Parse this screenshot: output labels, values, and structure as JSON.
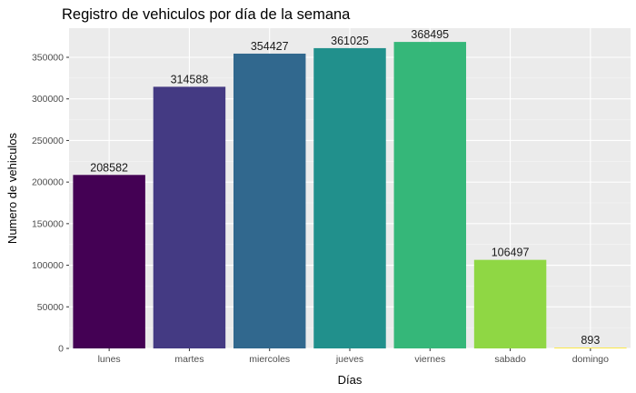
{
  "chart_data": {
    "type": "bar",
    "title": "Registro de vehiculos por día de la semana",
    "xlabel": "Días",
    "ylabel": "Numero de vehiculos",
    "categories": [
      "lunes",
      "martes",
      "miercoles",
      "jueves",
      "viernes",
      "sabado",
      "domingo"
    ],
    "values": [
      208582,
      314588,
      354427,
      361025,
      368495,
      106497,
      893
    ],
    "value_labels": [
      "208582",
      "314588",
      "354427",
      "361025",
      "368495",
      "106497",
      "893"
    ],
    "colors": [
      "#440154",
      "#443A83",
      "#31688E",
      "#21908C",
      "#35B779",
      "#8FD744",
      "#FDE725"
    ],
    "ylim": [
      0,
      385000
    ],
    "yticks": [
      0,
      50000,
      100000,
      150000,
      200000,
      250000,
      300000,
      350000
    ],
    "ytick_labels": [
      "0",
      "50000",
      "100000",
      "150000",
      "200000",
      "250000",
      "300000",
      "350000"
    ],
    "grid": true,
    "panel_background": "#EBEBEB",
    "legend": "none"
  }
}
